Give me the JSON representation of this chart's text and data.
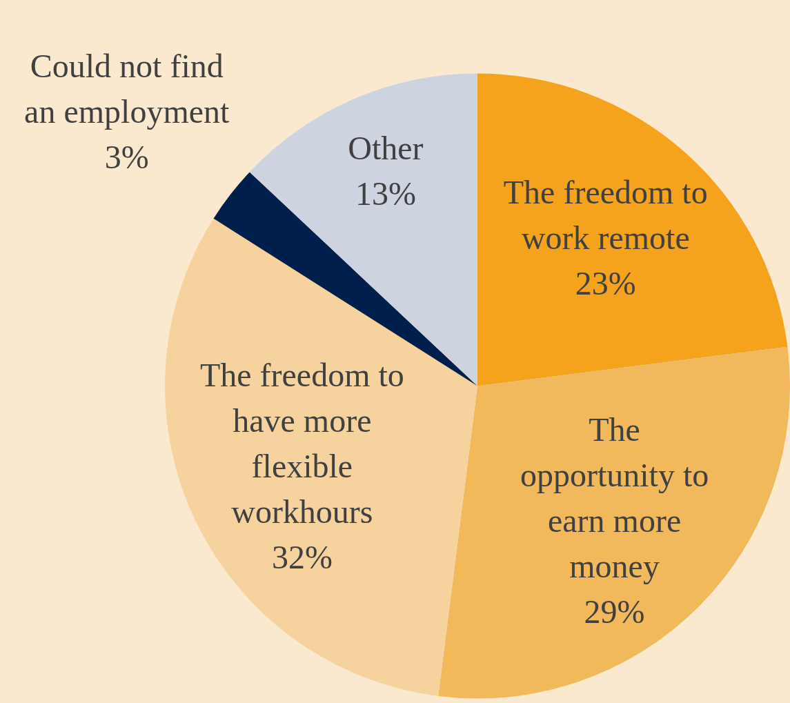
{
  "chart_data": {
    "type": "pie",
    "categories": [
      "The freedom to work remote",
      "The opportunity to earn more money",
      "The freedom to have more flexible workhours",
      "Could not find an employment",
      "Other"
    ],
    "values": [
      23,
      29,
      32,
      3,
      13
    ],
    "colors": [
      "#f5a31c",
      "#f2b85c",
      "#f6d39e",
      "#001f4d",
      "#cdd3df"
    ],
    "value_labels": [
      "23%",
      "29%",
      "32%",
      "3%",
      "13%"
    ],
    "legend": false
  }
}
